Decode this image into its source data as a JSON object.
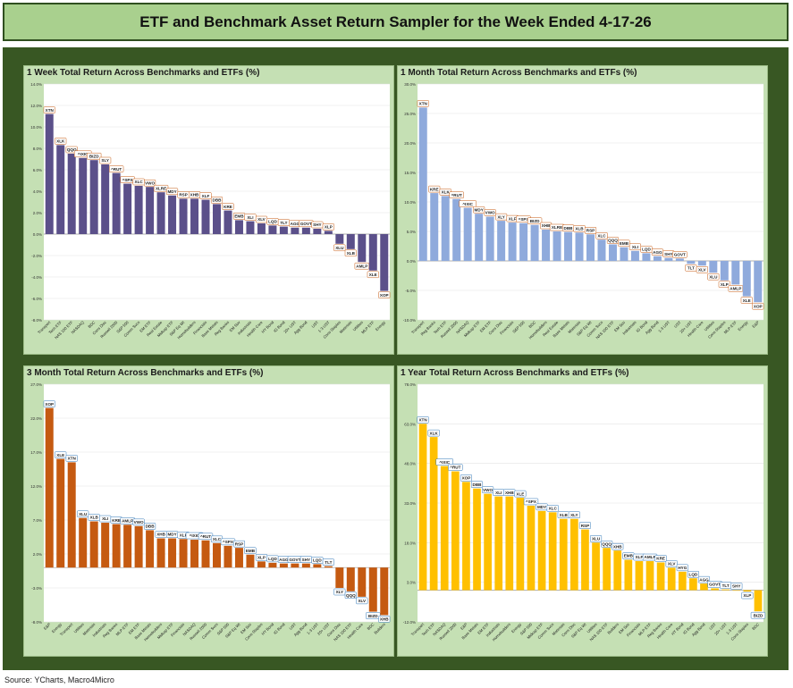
{
  "page_title": "ETF and Benchmark Asset Return Sampler for the Week Ended 4-17-26",
  "source": "Source: YCharts, Macro4Micro",
  "chart_data": [
    {
      "type": "bar",
      "title": "1 Week Total Return Across Benchmarks and ETFs (%)",
      "ylim": [
        -8,
        14
      ],
      "yticks": [
        -8,
        -6,
        -4,
        -2,
        0,
        2,
        4,
        6,
        8,
        10,
        12,
        14
      ],
      "tick_labels": [
        "-8.0%",
        "-6.0%",
        "-4.0%",
        "-2.0%",
        "0.0%",
        "2.0%",
        "4.0%",
        "6.0%",
        "8.0%",
        "10.0%",
        "12.0%",
        "14.0%"
      ],
      "color": "#5b508a",
      "label_border": "#c55a11",
      "bars": [
        {
          "ticker": "XTN",
          "name": "Transport",
          "value": 11.2
        },
        {
          "ticker": "XLK",
          "name": "Tech ETF",
          "value": 8.3
        },
        {
          "ticker": "QQQ",
          "name": "NAS 100 ETF",
          "value": 7.5
        },
        {
          "ticker": "^IXIC",
          "name": "NASDAQ",
          "value": 7.1
        },
        {
          "ticker": "BIZD",
          "name": "BDC",
          "value": 6.9
        },
        {
          "ticker": "SLY",
          "name": "Cons Disc",
          "value": 6.5
        },
        {
          "ticker": "^RUT",
          "name": "Russell 2000",
          "value": 5.7
        },
        {
          "ticker": "^SPX",
          "name": "S&P 500",
          "value": 4.7
        },
        {
          "ticker": "XLC",
          "name": "Comm Svcs",
          "value": 4.5
        },
        {
          "ticker": "VWO",
          "name": "EM ETF",
          "value": 4.4
        },
        {
          "ticker": "XLRE",
          "name": "Real Estate",
          "value": 3.9
        },
        {
          "ticker": "MDY",
          "name": "Midcap ETF",
          "value": 3.6
        },
        {
          "ticker": "RSP",
          "name": "S&P Eq Wt",
          "value": 3.3
        },
        {
          "ticker": "XHB",
          "name": "Homebuilders",
          "value": 3.3
        },
        {
          "ticker": "XLF",
          "name": "Financials",
          "value": 3.2
        },
        {
          "ticker": "DBB",
          "name": "Base Metals",
          "value": 2.8
        },
        {
          "ticker": "KRE",
          "name": "Reg Banks",
          "value": 2.2
        },
        {
          "ticker": "EMB",
          "name": "EM Sov",
          "value": 1.3
        },
        {
          "ticker": "XLI",
          "name": "Industrials",
          "value": 1.2
        },
        {
          "ticker": "XLV",
          "name": "Health Care",
          "value": 1.0
        },
        {
          "ticker": "LQD",
          "name": "HY Bond",
          "value": 0.8
        },
        {
          "ticker": "TLT",
          "name": "IG Bond",
          "value": 0.7
        },
        {
          "ticker": "AGG",
          "name": "20+ UST",
          "value": 0.6
        },
        {
          "ticker": "GOVT",
          "name": "Agg Bond",
          "value": 0.6
        },
        {
          "ticker": "SHY",
          "name": "UST",
          "value": 0.5
        },
        {
          "ticker": "XLP",
          "name": "1-3 UST",
          "value": 0.3
        },
        {
          "ticker": "XLU",
          "name": "Cons Staples",
          "value": -0.9
        },
        {
          "ticker": "XLB",
          "name": "Materials",
          "value": -1.4
        },
        {
          "ticker": "AMLP",
          "name": "Utilities",
          "value": -2.6
        },
        {
          "ticker": "XLE",
          "name": "MLP ETF",
          "value": -3.4
        },
        {
          "ticker": "XOP",
          "name": "Energy",
          "value": -5.3
        }
      ]
    },
    {
      "type": "bar",
      "title": "1 Month Total Return Across Benchmarks and ETFs (%)",
      "ylim": [
        -10,
        30
      ],
      "yticks": [
        -10,
        -5,
        0,
        5,
        10,
        15,
        20,
        25,
        30
      ],
      "tick_labels": [
        "-10.0%",
        "-5.0%",
        "0.0%",
        "5.0%",
        "10.0%",
        "15.0%",
        "20.0%",
        "25.0%",
        "30.0%"
      ],
      "color": "#8faadc",
      "label_border": "#c55a11",
      "bars": [
        {
          "ticker": "XTN",
          "name": "Transport",
          "value": 26.0
        },
        {
          "ticker": "KRE",
          "name": "Reg Banks",
          "value": 11.5
        },
        {
          "ticker": "XLK",
          "name": "Tech ETF",
          "value": 11.0
        },
        {
          "ticker": "^RUT",
          "name": "Russell 2000",
          "value": 10.5
        },
        {
          "ticker": "^IXIC",
          "name": "NASDAQ",
          "value": 9.0
        },
        {
          "ticker": "MDY",
          "name": "Midcap ETF",
          "value": 8.0
        },
        {
          "ticker": "VWO",
          "name": "EM ETF",
          "value": 7.5
        },
        {
          "ticker": "XLY",
          "name": "Cons Disc",
          "value": 6.8
        },
        {
          "ticker": "XLF",
          "name": "Financials",
          "value": 6.5
        },
        {
          "ticker": "^SPX",
          "name": "S&P 500",
          "value": 6.4
        },
        {
          "ticker": "BIZD",
          "name": "BDC",
          "value": 6.1
        },
        {
          "ticker": "XHB",
          "name": "Homebuilders",
          "value": 5.3
        },
        {
          "ticker": "XLRE",
          "name": "Real Estate",
          "value": 5.0
        },
        {
          "ticker": "DBB",
          "name": "Base Metals",
          "value": 4.9
        },
        {
          "ticker": "XLB",
          "name": "Materials",
          "value": 4.8
        },
        {
          "ticker": "RSP",
          "name": "S&P Eq Wt",
          "value": 4.5
        },
        {
          "ticker": "XLC",
          "name": "Comm Svcs",
          "value": 3.6
        },
        {
          "ticker": "QQQ",
          "name": "NAS 100 ETF",
          "value": 2.8
        },
        {
          "ticker": "EMB",
          "name": "EM Sov",
          "value": 2.3
        },
        {
          "ticker": "XLI",
          "name": "Industrials",
          "value": 1.7
        },
        {
          "ticker": "LQD",
          "name": "IG Bond",
          "value": 1.3
        },
        {
          "ticker": "AGG",
          "name": "Agg Bond",
          "value": 0.8
        },
        {
          "ticker": "SHY",
          "name": "1-3 UST",
          "value": 0.5
        },
        {
          "ticker": "GOVT",
          "name": "UST",
          "value": 0.4
        },
        {
          "ticker": "TLT",
          "name": "20+ UST",
          "value": -0.5
        },
        {
          "ticker": "XLV",
          "name": "Health Care",
          "value": -0.8
        },
        {
          "ticker": "XLU",
          "name": "Utilities",
          "value": -2.0
        },
        {
          "ticker": "XLP",
          "name": "Cons Staples",
          "value": -3.3
        },
        {
          "ticker": "AMLP",
          "name": "MLP ETF",
          "value": -4.0
        },
        {
          "ticker": "XLE",
          "name": "Energy",
          "value": -6.0
        },
        {
          "ticker": "XOP",
          "name": "E&P",
          "value": -7.0
        }
      ]
    },
    {
      "type": "bar",
      "title": "3 Month Total Return Across Benchmarks and ETFs (%)",
      "ylim": [
        -8,
        27
      ],
      "yticks": [
        -8,
        -3,
        2,
        7,
        12,
        17,
        22,
        27
      ],
      "tick_labels": [
        "-8.0%",
        "-3.0%",
        "2.0%",
        "7.0%",
        "12.0%",
        "17.0%",
        "22.0%",
        "27.0%"
      ],
      "color": "#c55a11",
      "label_border": "#2e75b6",
      "bars": [
        {
          "ticker": "XOP",
          "name": "E&P",
          "value": 23.5
        },
        {
          "ticker": "XLE",
          "name": "Energy",
          "value": 16.0
        },
        {
          "ticker": "XTN",
          "name": "Transport",
          "value": 15.5
        },
        {
          "ticker": "XLU",
          "name": "Utilities",
          "value": 7.3
        },
        {
          "ticker": "XLB",
          "name": "Materials",
          "value": 6.8
        },
        {
          "ticker": "XLI",
          "name": "Industrials",
          "value": 6.6
        },
        {
          "ticker": "KRE",
          "name": "Reg Banks",
          "value": 6.4
        },
        {
          "ticker": "AMLP",
          "name": "MLP ETF",
          "value": 6.3
        },
        {
          "ticker": "VWO",
          "name": "EM ETF",
          "value": 6.1
        },
        {
          "ticker": "DBB",
          "name": "Base Metals",
          "value": 5.5
        },
        {
          "ticker": "XHB",
          "name": "Homebuilders",
          "value": 4.3
        },
        {
          "ticker": "MDY",
          "name": "Midcap ETF",
          "value": 4.3
        },
        {
          "ticker": "XLF",
          "name": "Financials",
          "value": 4.2
        },
        {
          "ticker": "^IXIC",
          "name": "NASDAQ",
          "value": 4.1
        },
        {
          "ticker": "^RUT",
          "name": "Russell 2000",
          "value": 4.0
        },
        {
          "ticker": "XLC",
          "name": "Comm Svcs",
          "value": 3.6
        },
        {
          "ticker": "^SPX",
          "name": "S&P 500",
          "value": 3.2
        },
        {
          "ticker": "RSP",
          "name": "S&P Eq Wt",
          "value": 2.9
        },
        {
          "ticker": "EMB",
          "name": "EM Sov",
          "value": 1.9
        },
        {
          "ticker": "XLP",
          "name": "Cons Staples",
          "value": 0.9
        },
        {
          "ticker": "LQD",
          "name": "HY Bond",
          "value": 0.7
        },
        {
          "ticker": "AGG",
          "name": "IG Bond",
          "value": 0.6
        },
        {
          "ticker": "GOVT",
          "name": "UST",
          "value": 0.6
        },
        {
          "ticker": "SHY",
          "name": "Agg Bond",
          "value": 0.6
        },
        {
          "ticker": "LQD",
          "name": "1-3 UST",
          "value": 0.5
        },
        {
          "ticker": "TLT",
          "name": "20+ UST",
          "value": 0.2
        },
        {
          "ticker": "XLY",
          "name": "Cons Disc",
          "value": -3.0
        },
        {
          "ticker": "QQQ",
          "name": "NAS 100 ETF",
          "value": -3.5
        },
        {
          "ticker": "XLV",
          "name": "Health Care",
          "value": -4.3
        },
        {
          "ticker": "BIZD",
          "name": "BDC",
          "value": -6.5
        },
        {
          "ticker": "XHB",
          "name": "Builders",
          "value": -7.0
        }
      ]
    },
    {
      "type": "bar",
      "title": "1 Year Total Return Across Benchmarks and ETFs (%)",
      "ylim": [
        -12,
        78
      ],
      "yticks": [
        -12,
        3,
        18,
        33,
        48,
        63,
        78
      ],
      "tick_labels": [
        "-12.0%",
        "3.0%",
        "18.0%",
        "33.0%",
        "48.0%",
        "63.0%",
        "78.0%"
      ],
      "color": "#ffc000",
      "label_border": "#2e75b6",
      "bars": [
        {
          "ticker": "XTN",
          "name": "Transport",
          "value": 63.0
        },
        {
          "ticker": "XLK",
          "name": "Tech ETF",
          "value": 58.0
        },
        {
          "ticker": "^IXIC",
          "name": "NASDAQ",
          "value": 47.0
        },
        {
          "ticker": "^RUT",
          "name": "Russell 2000",
          "value": 45.0
        },
        {
          "ticker": "XOP",
          "name": "E&P",
          "value": 41.0
        },
        {
          "ticker": "DBB",
          "name": "Base Metals",
          "value": 38.5
        },
        {
          "ticker": "VWO",
          "name": "EM ETF",
          "value": 36.5
        },
        {
          "ticker": "XLI",
          "name": "Industrials",
          "value": 35.5
        },
        {
          "ticker": "XHB",
          "name": "Homebuilders",
          "value": 35.5
        },
        {
          "ticker": "XLE",
          "name": "Energy",
          "value": 35.0
        },
        {
          "ticker": "^SPX",
          "name": "S&P 500",
          "value": 32.0
        },
        {
          "ticker": "MDY",
          "name": "Midcap ETF",
          "value": 30.0
        },
        {
          "ticker": "XLC",
          "name": "Comm Svcs",
          "value": 29.5
        },
        {
          "ticker": "XLB",
          "name": "Materials",
          "value": 27.0
        },
        {
          "ticker": "XLY",
          "name": "Cons Disc",
          "value": 27.0
        },
        {
          "ticker": "RSP",
          "name": "S&P Eq Wt",
          "value": 23.0
        },
        {
          "ticker": "XLU",
          "name": "Utilities",
          "value": 18.0
        },
        {
          "ticker": "QQQ",
          "name": "NAS 100 ETF",
          "value": 16.0
        },
        {
          "ticker": "XHB",
          "name": "Builders",
          "value": 15.0
        },
        {
          "ticker": "EMB",
          "name": "EM Sov",
          "value": 11.5
        },
        {
          "ticker": "XLF",
          "name": "Financials",
          "value": 11.0
        },
        {
          "ticker": "AMLP",
          "name": "MLP ETF",
          "value": 11.0
        },
        {
          "ticker": "KRE",
          "name": "Reg Banks",
          "value": 10.5
        },
        {
          "ticker": "XLV",
          "name": "Health Care",
          "value": 8.5
        },
        {
          "ticker": "HYG",
          "name": "HY Bond",
          "value": 7.0
        },
        {
          "ticker": "LQD",
          "name": "IG Bond",
          "value": 4.5
        },
        {
          "ticker": "AGG",
          "name": "Agg Bond",
          "value": 2.5
        },
        {
          "ticker": "GOVT",
          "name": "UST",
          "value": 0.7
        },
        {
          "ticker": "TLT",
          "name": "20+ UST",
          "value": 0.3
        },
        {
          "ticker": "SHY",
          "name": "1-3 UST",
          "value": 0.0
        },
        {
          "ticker": "XLP",
          "name": "Cons Staples",
          "value": -0.5
        },
        {
          "ticker": "BIZD",
          "name": "BDC",
          "value": -8.0
        }
      ]
    }
  ]
}
